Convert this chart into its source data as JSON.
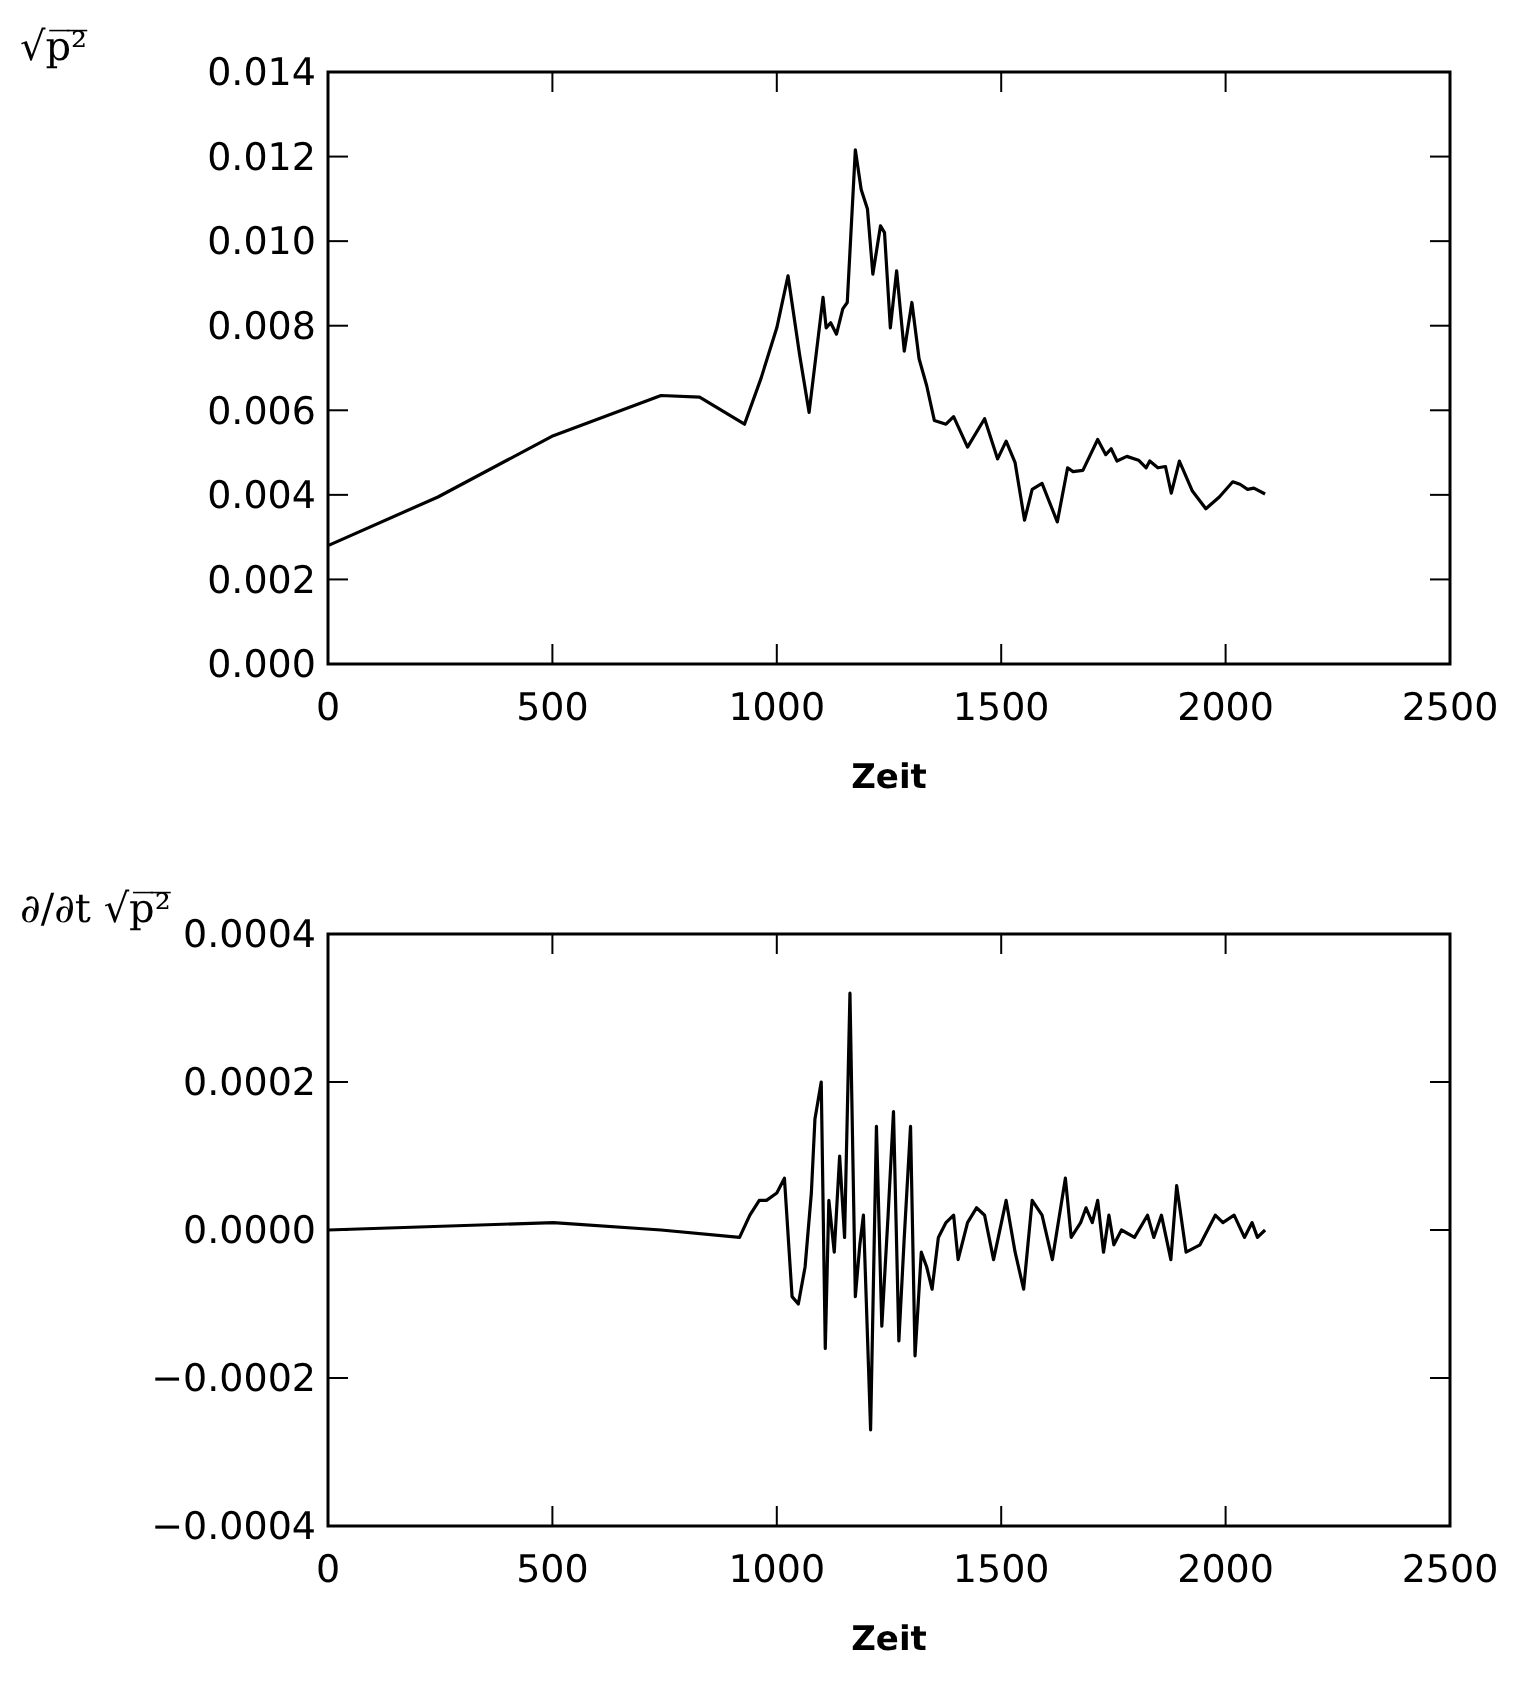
{
  "chart_data": [
    {
      "type": "line",
      "ylabel": "√p̅²̅",
      "xlabel": "Zeit",
      "xlim": [
        0,
        2500
      ],
      "xticks": [
        0,
        500,
        1000,
        1500,
        2000,
        2500
      ],
      "ylim": [
        0,
        0.014
      ],
      "yticks": [
        {
          "value": 0,
          "label": "0.000"
        },
        {
          "value": 0.002,
          "label": "0.002"
        },
        {
          "value": 0.004,
          "label": "0.004"
        },
        {
          "value": 0.006,
          "label": "0.006"
        },
        {
          "value": 0.008,
          "label": "0.008"
        },
        {
          "value": 0.01,
          "label": "0.010"
        },
        {
          "value": 0.012,
          "label": "0.012"
        },
        {
          "value": 0.014,
          "label": "0.014"
        }
      ],
      "series": [
        {
          "color": "#000000",
          "x": [
            0,
            245,
            502,
            742,
            828,
            928,
            965,
            1000,
            1025,
            1051,
            1072,
            1103,
            1110,
            1120,
            1133,
            1147,
            1157,
            1175,
            1188,
            1202,
            1214,
            1231,
            1240,
            1253,
            1267,
            1284,
            1301,
            1317,
            1334,
            1351,
            1377,
            1394,
            1425,
            1463,
            1492,
            1511,
            1531,
            1552,
            1569,
            1591,
            1625,
            1648,
            1660,
            1682,
            1715,
            1733,
            1745,
            1758,
            1780,
            1806,
            1823,
            1831,
            1849,
            1866,
            1879,
            1897,
            1926,
            1956,
            1986,
            2016,
            2032,
            2049,
            2063,
            2088
          ],
          "values": [
            0.0028,
            0.00395,
            0.0054,
            0.00635,
            0.00631,
            0.00567,
            0.00676,
            0.00795,
            0.00918,
            0.0073,
            0.00595,
            0.00867,
            0.00795,
            0.00807,
            0.0078,
            0.0084,
            0.00855,
            0.01216,
            0.01122,
            0.01076,
            0.00922,
            0.01036,
            0.0102,
            0.00795,
            0.0093,
            0.0074,
            0.00855,
            0.00722,
            0.00658,
            0.00576,
            0.00567,
            0.00585,
            0.00513,
            0.0058,
            0.00485,
            0.00527,
            0.00476,
            0.0034,
            0.00413,
            0.00427,
            0.00336,
            0.00464,
            0.00455,
            0.00458,
            0.00531,
            0.00495,
            0.00509,
            0.0048,
            0.00491,
            0.00482,
            0.00464,
            0.0048,
            0.00464,
            0.00467,
            0.00404,
            0.0048,
            0.00409,
            0.00367,
            0.00395,
            0.00431,
            0.00425,
            0.00413,
            0.00416,
            0.00402
          ]
        }
      ]
    },
    {
      "type": "line",
      "ylabel": "∂/∂t √p̅²̅",
      "xlabel": "Zeit",
      "xlim": [
        0,
        2500
      ],
      "xticks": [
        0,
        500,
        1000,
        1500,
        2000,
        2500
      ],
      "ylim": [
        -0.0004,
        0.0004
      ],
      "yticks": [
        {
          "value": -0.0004,
          "label": "−0.0004"
        },
        {
          "value": -0.0002,
          "label": "−0.0002"
        },
        {
          "value": 0,
          "label": "0.0000"
        },
        {
          "value": 0.0002,
          "label": "0.0002"
        },
        {
          "value": 0.0004,
          "label": "0.0004"
        }
      ],
      "series": [
        {
          "color": "#000000",
          "x": [
            0,
            502,
            742,
            917,
            940,
            961,
            977,
            1000,
            1017,
            1034,
            1048,
            1063,
            1077,
            1085,
            1099,
            1108,
            1116,
            1128,
            1140,
            1151,
            1163,
            1175,
            1185,
            1193,
            1209,
            1222,
            1234,
            1248,
            1260,
            1272,
            1284,
            1298,
            1308,
            1322,
            1334,
            1346,
            1360,
            1377,
            1394,
            1404,
            1425,
            1445,
            1463,
            1483,
            1511,
            1531,
            1550,
            1569,
            1591,
            1614,
            1643,
            1656,
            1677,
            1689,
            1703,
            1715,
            1728,
            1740,
            1751,
            1768,
            1797,
            1826,
            1840,
            1857,
            1878,
            1891,
            1912,
            1943,
            1977,
            1994,
            2019,
            2042,
            2059,
            2071,
            2088
          ],
          "values": [
            0,
            1e-05,
            0,
            -1e-05,
            2e-05,
            4e-05,
            4e-05,
            5e-05,
            7e-05,
            -9e-05,
            -0.0001,
            -5e-05,
            5e-05,
            0.00015,
            0.0002,
            -0.00016,
            4e-05,
            -3e-05,
            0.0001,
            -1e-05,
            0.00032,
            -9e-05,
            -2e-05,
            2e-05,
            -0.00027,
            0.00014,
            -0.00013,
            2e-05,
            0.00016,
            -0.00015,
            -1e-05,
            0.00014,
            -0.00017,
            -3e-05,
            -5e-05,
            -8e-05,
            -1e-05,
            1e-05,
            2e-05,
            -4e-05,
            1e-05,
            3e-05,
            2e-05,
            -4e-05,
            4e-05,
            -3e-05,
            -8e-05,
            4e-05,
            2e-05,
            -4e-05,
            7e-05,
            -1e-05,
            1e-05,
            3e-05,
            1e-05,
            4e-05,
            -3e-05,
            2e-05,
            -2e-05,
            0,
            -1e-05,
            2e-05,
            -1e-05,
            2e-05,
            -4e-05,
            6e-05,
            -3e-05,
            -2e-05,
            2e-05,
            1e-05,
            2e-05,
            -1e-05,
            1e-05,
            -1e-05,
            0
          ]
        }
      ]
    }
  ]
}
